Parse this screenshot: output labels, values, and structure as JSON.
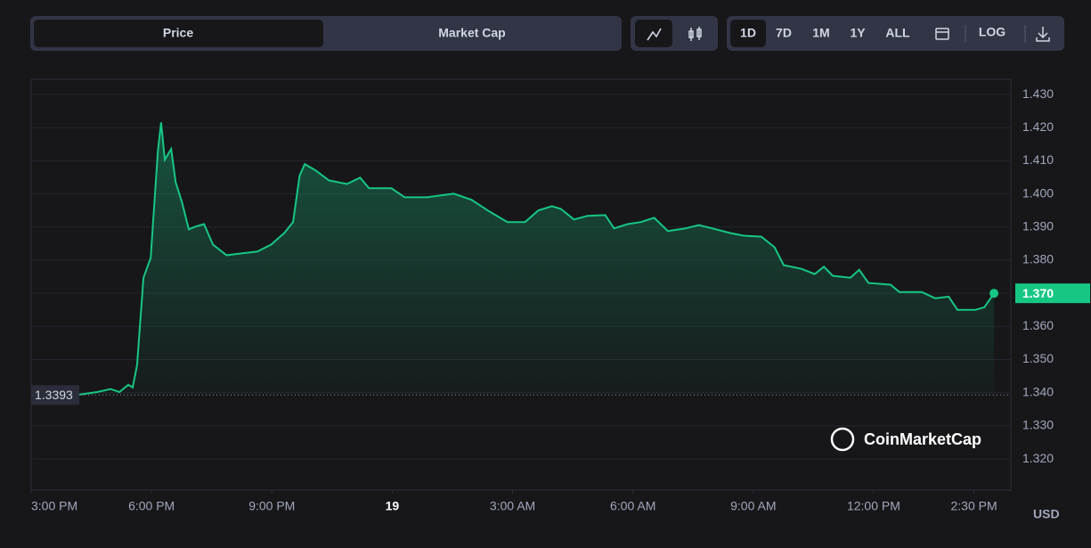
{
  "toolbar": {
    "tabs": [
      "Price",
      "Market Cap"
    ],
    "ranges": [
      "1D",
      "7D",
      "1M",
      "1Y",
      "ALL"
    ],
    "log": "LOG"
  },
  "chart_data": {
    "type": "line",
    "watermark": "CoinMarketCap",
    "y_label": "USD",
    "x": [
      16.2,
      16.64,
      16.98,
      17.2,
      17.42,
      17.53,
      17.64,
      17.8,
      17.98,
      18.16,
      18.24,
      18.33,
      18.49,
      18.6,
      18.76,
      18.93,
      19.09,
      19.31,
      19.53,
      19.87,
      20.2,
      20.64,
      20.98,
      21.31,
      21.53,
      21.69,
      21.82,
      22.09,
      22.42,
      22.87,
      23.2,
      23.42,
      23.98,
      24.31,
      24.87,
      25.53,
      25.98,
      26.42,
      26.87,
      27.31,
      27.64,
      27.98,
      28.2,
      28.53,
      28.87,
      29.31,
      29.53,
      29.87,
      30.2,
      30.53,
      30.87,
      31.31,
      31.64,
      31.98,
      32.42,
      32.76,
      33.2,
      33.53,
      33.76,
      34.2,
      34.53,
      34.76,
      34.98,
      35.42,
      35.64,
      35.87,
      36.42,
      36.64,
      37.2,
      37.53,
      37.87,
      38.09,
      38.53,
      38.76,
      39
    ],
    "series": [
      {
        "color": "#16c784",
        "values": [
          1.3394,
          1.3402,
          1.3411,
          1.3402,
          1.3424,
          1.3416,
          1.3483,
          1.3747,
          1.3807,
          1.413,
          1.4216,
          1.4103,
          1.4136,
          1.4036,
          1.3974,
          1.3893,
          1.3901,
          1.3909,
          1.3847,
          1.3815,
          1.382,
          1.3826,
          1.3847,
          1.3882,
          1.3915,
          1.4055,
          1.409,
          1.4071,
          1.4041,
          1.403,
          1.4049,
          1.4017,
          1.4017,
          1.399,
          1.399,
          1.4001,
          1.3982,
          1.3947,
          1.3915,
          1.3915,
          1.395,
          1.3963,
          1.3955,
          1.3923,
          1.3934,
          1.3936,
          1.3896,
          1.3909,
          1.3915,
          1.3928,
          1.3888,
          1.3896,
          1.3906,
          1.3896,
          1.3882,
          1.3874,
          1.3871,
          1.3839,
          1.3785,
          1.3774,
          1.3758,
          1.378,
          1.3753,
          1.3747,
          1.3771,
          1.3731,
          1.3726,
          1.3704,
          1.3704,
          1.3685,
          1.369,
          1.365,
          1.365,
          1.3658,
          1.37
        ]
      }
    ],
    "reference": 1.3393,
    "current_price": {
      "value": 1.37,
      "label": "1.370"
    },
    "xlim": [
      15,
      39.42
    ],
    "xticks": [
      {
        "value": 15,
        "label": "3:00 PM"
      },
      {
        "value": 18,
        "label": "6:00 PM"
      },
      {
        "value": 21,
        "label": "9:00 PM"
      },
      {
        "value": 24,
        "label": "19"
      },
      {
        "value": 27,
        "label": "3:00 AM"
      },
      {
        "value": 30,
        "label": "6:00 AM"
      },
      {
        "value": 33,
        "label": "9:00 AM"
      },
      {
        "value": 36,
        "label": "12:00 PM"
      },
      {
        "value": 38.5,
        "label": "2:30 PM"
      }
    ],
    "ylim": [
      1.3106,
      1.4346
    ],
    "yticks": [
      {
        "value": 1.43,
        "label": "1.430"
      },
      {
        "value": 1.42,
        "label": "1.420"
      },
      {
        "value": 1.41,
        "label": "1.410"
      },
      {
        "value": 1.4,
        "label": "1.400"
      },
      {
        "value": 1.39,
        "label": "1.390"
      },
      {
        "value": 1.38,
        "label": "1.380"
      },
      {
        "value": 1.37,
        "label": "1.370"
      },
      {
        "value": 1.36,
        "label": "1.360"
      },
      {
        "value": 1.35,
        "label": "1.350"
      },
      {
        "value": 1.34,
        "label": "1.340"
      },
      {
        "value": 1.33,
        "label": "1.330"
      },
      {
        "value": 1.32,
        "label": "1.320"
      }
    ],
    "grid": true
  }
}
